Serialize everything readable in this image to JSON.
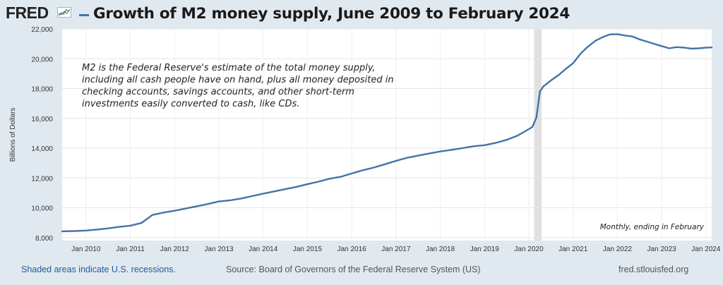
{
  "header": {
    "logo_text": "FRED",
    "title": "Growth of M2 money supply, June 2009 to February 2024",
    "series_color": "#4572a7"
  },
  "annotation": "M2 is the Federal Reserve's estimate of the total money supply, including all cash people have on hand, plus all money deposited in checking accounts, savings accounts, and other short-term investments easily converted to cash, like CDs.",
  "note": "Monthly, ending in February",
  "footer": {
    "recession_note": "Shaded areas indicate U.S. recessions.",
    "source": "Source: Board of Governors of the Federal Reserve System (US)",
    "url": "fred.stlouisfed.org"
  },
  "chart_data": {
    "type": "line",
    "title": "Growth of M2 money supply, June 2009 to February 2024",
    "xlabel": "",
    "ylabel": "Billions of Dollars",
    "ylim": [
      7800,
      22000
    ],
    "xlim": [
      2009.46,
      2024.13
    ],
    "yticks": [
      8000,
      10000,
      12000,
      14000,
      16000,
      18000,
      20000,
      22000
    ],
    "ytick_labels": [
      "8,000",
      "10,000",
      "12,000",
      "14,000",
      "16,000",
      "18,000",
      "20,000",
      "22,000"
    ],
    "xticks": [
      2010,
      2011,
      2012,
      2013,
      2014,
      2015,
      2016,
      2017,
      2018,
      2019,
      2020,
      2021,
      2022,
      2023,
      2024
    ],
    "xtick_labels": [
      "Jan 2010",
      "Jan 2011",
      "Jan 2012",
      "Jan 2013",
      "Jan 2014",
      "Jan 2015",
      "Jan 2016",
      "Jan 2017",
      "Jan 2018",
      "Jan 2019",
      "Jan 2020",
      "Jan 2021",
      "Jan 2022",
      "Jan 2023",
      "Jan 2024"
    ],
    "grid": true,
    "recession_shading": [
      {
        "start": 2020.12,
        "end": 2020.29
      }
    ],
    "series": [
      {
        "name": "M2",
        "color": "#4572a7",
        "x": [
          2009.46,
          2009.75,
          2010.0,
          2010.25,
          2010.5,
          2010.75,
          2011.0,
          2011.25,
          2011.5,
          2011.75,
          2012.0,
          2012.25,
          2012.5,
          2012.75,
          2013.0,
          2013.25,
          2013.5,
          2013.75,
          2014.0,
          2014.25,
          2014.5,
          2014.75,
          2015.0,
          2015.25,
          2015.5,
          2015.75,
          2016.0,
          2016.25,
          2016.5,
          2016.75,
          2017.0,
          2017.25,
          2017.5,
          2017.75,
          2018.0,
          2018.25,
          2018.5,
          2018.75,
          2019.0,
          2019.25,
          2019.5,
          2019.75,
          2020.0,
          2020.08,
          2020.17,
          2020.25,
          2020.33,
          2020.42,
          2020.5,
          2020.67,
          2020.83,
          2021.0,
          2021.17,
          2021.33,
          2021.5,
          2021.67,
          2021.83,
          2022.0,
          2022.17,
          2022.33,
          2022.5,
          2022.67,
          2022.83,
          2023.0,
          2023.17,
          2023.33,
          2023.5,
          2023.67,
          2023.83,
          2024.0,
          2024.13
        ],
        "values": [
          8420,
          8440,
          8470,
          8540,
          8620,
          8720,
          8800,
          8980,
          9520,
          9680,
          9800,
          9950,
          10100,
          10250,
          10420,
          10500,
          10620,
          10780,
          10950,
          11100,
          11250,
          11400,
          11580,
          11750,
          11950,
          12080,
          12300,
          12520,
          12700,
          12920,
          13150,
          13350,
          13500,
          13640,
          13780,
          13880,
          14000,
          14130,
          14200,
          14350,
          14560,
          14850,
          15280,
          15420,
          16050,
          17800,
          18150,
          18350,
          18550,
          18900,
          19300,
          19700,
          20350,
          20800,
          21200,
          21450,
          21630,
          21650,
          21560,
          21500,
          21300,
          21150,
          21000,
          20850,
          20700,
          20780,
          20750,
          20680,
          20700,
          20740,
          20760
        ]
      }
    ]
  }
}
